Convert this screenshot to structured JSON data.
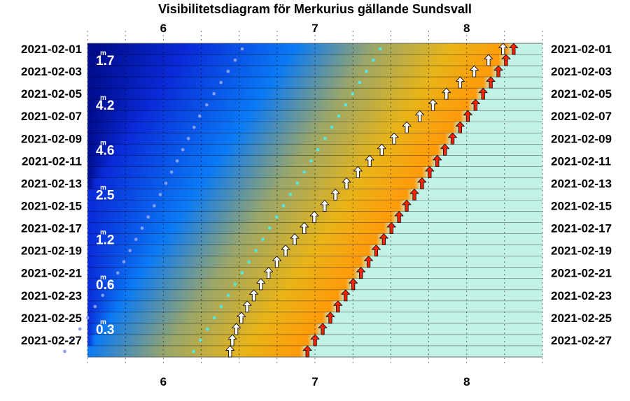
{
  "chart_data": {
    "type": "visibility-diagram",
    "title": "Visibilitetsdiagram för Merkurius gällande Sundsvall",
    "x_axis": {
      "unit": "hour",
      "range": [
        5.5,
        8.5
      ],
      "ticks": [
        6,
        7,
        8
      ],
      "tick_labels": [
        "6",
        "7",
        "8"
      ],
      "minor_ticks": [
        5.5,
        5.75,
        6.25,
        6.5,
        6.75,
        7.25,
        7.5,
        7.75,
        8.25,
        8.5
      ],
      "grid_vertical_dotted": true
    },
    "y_axis": {
      "date_start": "2021-02-01",
      "date_end": "2021-02-28",
      "row_labels": [
        "2021-02-01",
        "2021-02-03",
        "2021-02-05",
        "2021-02-07",
        "2021-02-09",
        "2021-02-11",
        "2021-02-13",
        "2021-02-15",
        "2021-02-17",
        "2021-02-19",
        "2021-02-21",
        "2021-02-23",
        "2021-02-25",
        "2021-02-27"
      ],
      "labels_both_sides": true
    },
    "magnitudes": [
      {
        "date": "2021-02-02",
        "value": "1.7"
      },
      {
        "date": "2021-02-06",
        "value": "4.2"
      },
      {
        "date": "2021-02-10",
        "value": "4.6"
      },
      {
        "date": "2021-02-14",
        "value": "2.5"
      },
      {
        "date": "2021-02-18",
        "value": "1.2"
      },
      {
        "date": "2021-02-22",
        "value": "0.6"
      },
      {
        "date": "2021-02-26",
        "value": "0.3"
      }
    ],
    "magnitude_unit_mark": "m",
    "sunrise": {
      "color": "#ff2200",
      "start_date": "2021-02-01",
      "start_hour": 8.31,
      "end_date": "2021-02-28",
      "end_hour": 6.95
    },
    "mercury_rise": {
      "color": "#ffffff",
      "start_date": "2021-02-01",
      "start_hour": 8.24,
      "end_date": "2021-02-28",
      "end_hour": 6.44,
      "curve_power": 1.45
    },
    "civil_twilight_dots": {
      "color": "#55e8e0",
      "start_date": "2021-02-01",
      "start_hour": 7.43,
      "end_date": "2021-02-28",
      "end_hour": 6.2
    },
    "nautical_twilight_dots": {
      "color": "#8a9ef0",
      "points": [
        {
          "date": "2021-02-01",
          "hour": 6.52
        },
        {
          "date": "2021-02-07",
          "hour": 6.24
        },
        {
          "date": "2021-02-14",
          "hour": 5.98
        },
        {
          "date": "2021-02-21",
          "hour": 5.7
        },
        {
          "date": "2021-02-24",
          "hour": 5.55
        }
      ]
    },
    "colors": {
      "daylight": "#c2f2e6",
      "night": "#000c8c",
      "deep_blue": "#0a2ad8",
      "blue": "#0a7af5",
      "olive": "#9aa66a",
      "gold": "#e8b418",
      "orange": "#ff9a0a"
    }
  }
}
